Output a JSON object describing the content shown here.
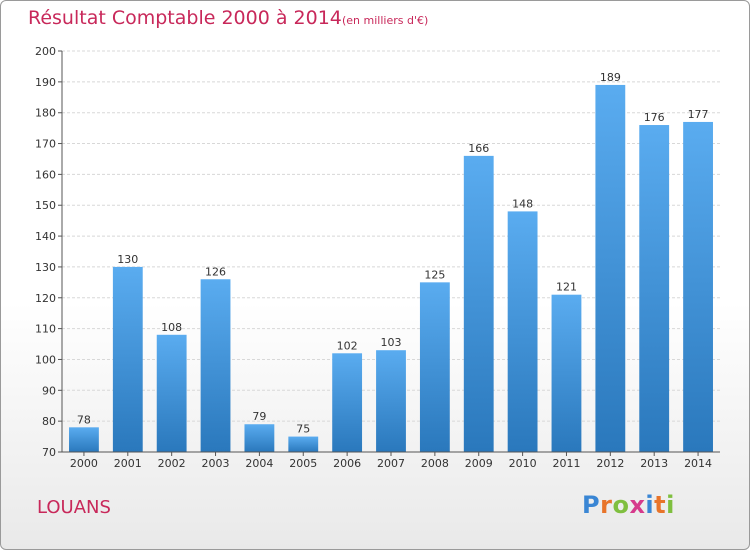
{
  "header": {
    "title": "Résultat Comptable 2000 à 2014",
    "subtitle": "(en milliers d'€)"
  },
  "footer": {
    "place": "LOUANS",
    "logo": {
      "text": "Proxiti",
      "letters": [
        {
          "ch": "P",
          "color": "#3a86d4"
        },
        {
          "ch": "r",
          "color": "#e8742a"
        },
        {
          "ch": "o",
          "color": "#7fbf3f"
        },
        {
          "ch": "x",
          "color": "#d63a8c"
        },
        {
          "ch": "i",
          "color": "#3a86d4"
        },
        {
          "ch": "t",
          "color": "#e8742a"
        },
        {
          "ch": "i",
          "color": "#7fbf3f"
        }
      ]
    }
  },
  "colors": {
    "accent": "#c8285a",
    "bar_top": "#5aacf0",
    "bar_bottom": "#2a78bc",
    "grid": "#d8d8d8",
    "axis": "#555555"
  },
  "chart_data": {
    "type": "bar",
    "categories": [
      "2000",
      "2001",
      "2002",
      "2003",
      "2004",
      "2005",
      "2006",
      "2007",
      "2008",
      "2009",
      "2010",
      "2011",
      "2012",
      "2013",
      "2014"
    ],
    "values": [
      78,
      130,
      108,
      126,
      79,
      75,
      102,
      103,
      125,
      166,
      148,
      121,
      189,
      176,
      177
    ],
    "title": "Résultat Comptable 2000 à 2014",
    "xlabel": "",
    "ylabel": "",
    "ylim": [
      70,
      200
    ],
    "yticks": [
      70,
      80,
      90,
      100,
      110,
      120,
      130,
      140,
      150,
      160,
      170,
      180,
      190,
      200
    ],
    "grid": true,
    "data_labels": true
  }
}
